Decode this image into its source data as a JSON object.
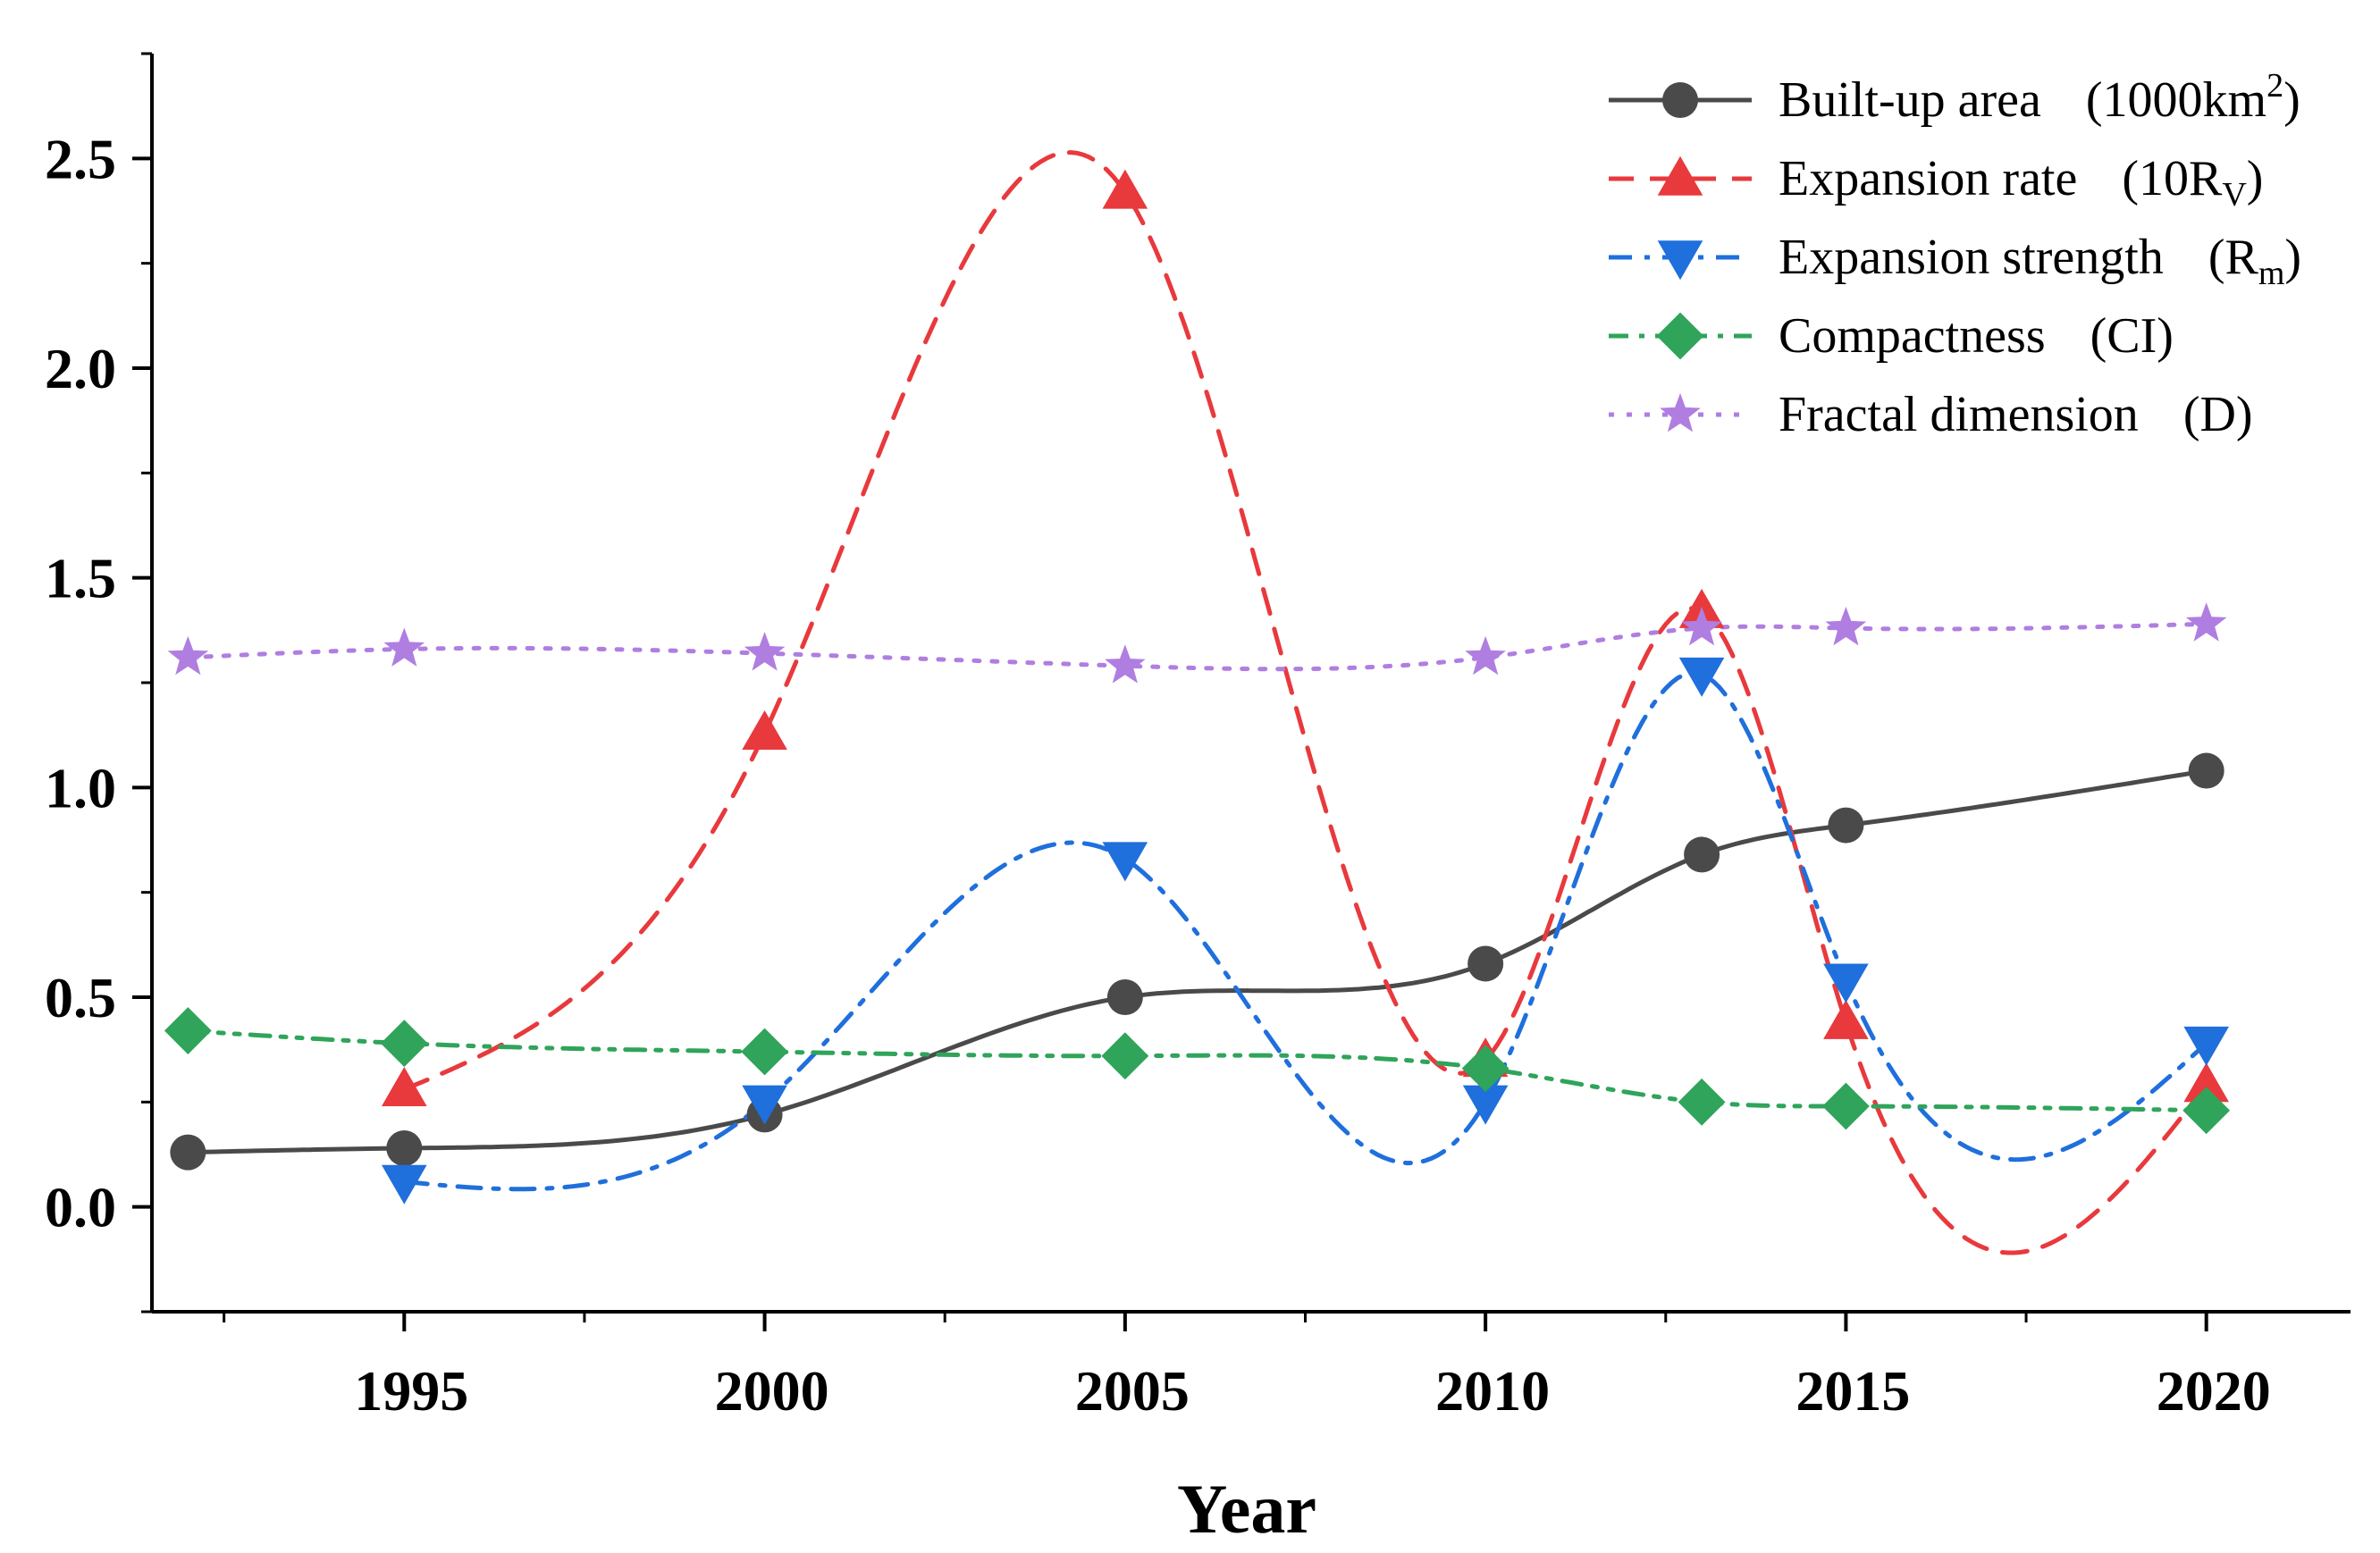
{
  "chart_data": {
    "type": "line",
    "title": "",
    "xlabel": "Year",
    "ylabel": "",
    "xlim": [
      1991.5,
      2022
    ],
    "ylim": [
      -0.25,
      2.75
    ],
    "x_ticks": [
      1995,
      2000,
      2005,
      2010,
      2015,
      2020
    ],
    "x_tick_labels": [
      "1995",
      "2000",
      "2005",
      "2010",
      "2015",
      "2020"
    ],
    "y_ticks": [
      0.0,
      0.5,
      1.0,
      1.5,
      2.0,
      2.5
    ],
    "y_tick_labels": [
      "0.0",
      "0.5",
      "1.0",
      "1.5",
      "2.0",
      "2.5"
    ],
    "legend_position": "top-right",
    "grid": false,
    "series": [
      {
        "id": "builtup",
        "name": "Built-up area",
        "unit_main": "(1000km",
        "unit_sup": "2",
        "unit_sub": "",
        "unit_tail": ")",
        "color": "#4a4a4a",
        "line_style": "solid",
        "marker": "circle",
        "x": [
          1992,
          1995,
          2000,
          2005,
          2010,
          2013,
          2015,
          2020
        ],
        "y": [
          0.13,
          0.14,
          0.22,
          0.5,
          0.58,
          0.84,
          0.91,
          1.04
        ]
      },
      {
        "id": "rate",
        "name": "Expansion rate",
        "unit_main": "(10R",
        "unit_sup": "",
        "unit_sub": "V",
        "unit_tail": ")",
        "color": "#e8393c",
        "line_style": "dash",
        "marker": "triangle-up",
        "x": [
          1995,
          2000,
          2005,
          2010,
          2013,
          2015,
          2020
        ],
        "y": [
          0.28,
          1.13,
          2.42,
          0.35,
          1.42,
          0.44,
          0.29
        ]
      },
      {
        "id": "strength",
        "name": "Expansion strength",
        "unit_main": "(R",
        "unit_sup": "",
        "unit_sub": "m",
        "unit_tail": ")",
        "color": "#1f6fdc",
        "line_style": "dashdot",
        "marker": "triangle-down",
        "x": [
          1995,
          2000,
          2005,
          2010,
          2013,
          2015,
          2020
        ],
        "y": [
          0.06,
          0.25,
          0.83,
          0.25,
          1.27,
          0.54,
          0.39
        ]
      },
      {
        "id": "compact",
        "name": "Compactness",
        "unit_main": "(CI)",
        "unit_sup": "",
        "unit_sub": "",
        "unit_tail": "",
        "color": "#2fa45a",
        "line_style": "dashdotdot",
        "marker": "diamond",
        "x": [
          1992,
          1995,
          2000,
          2005,
          2010,
          2013,
          2015,
          2020
        ],
        "y": [
          0.42,
          0.39,
          0.37,
          0.36,
          0.33,
          0.25,
          0.24,
          0.23
        ]
      },
      {
        "id": "fractal",
        "name": "Fractal dimension",
        "unit_main": "(D)",
        "unit_sup": "",
        "unit_sub": "",
        "unit_tail": "",
        "color": "#b07ee0",
        "line_style": "dot",
        "marker": "star",
        "x": [
          1992,
          1995,
          2000,
          2005,
          2010,
          2013,
          2015,
          2020
        ],
        "y": [
          1.31,
          1.33,
          1.32,
          1.29,
          1.31,
          1.38,
          1.38,
          1.39
        ]
      }
    ]
  }
}
